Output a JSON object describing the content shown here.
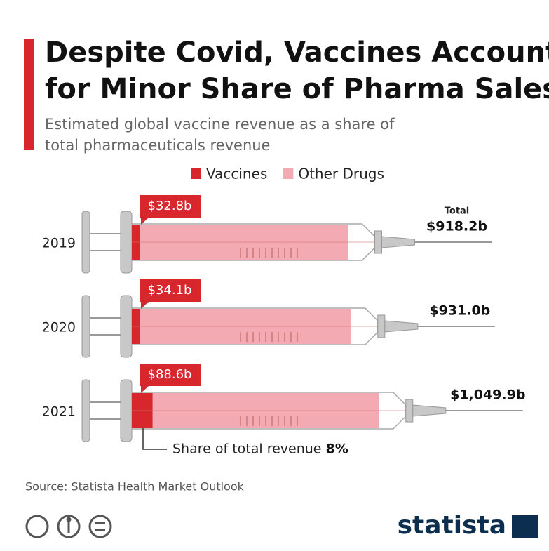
{
  "chart_data": {
    "type": "syringe",
    "title": [
      "Despite Covid, Vaccines Account",
      "for Minor Share of Pharma Sales"
    ],
    "subtitle": [
      "Estimated global vaccine revenue as a share of",
      "total pharmaceuticals revenue"
    ],
    "categories": [
      "2019",
      "2020",
      "2021"
    ],
    "series": [
      {
        "name": "Vaccines",
        "color": "#d7262c",
        "values": [
          32.8,
          34.1,
          88.6
        ],
        "value_labels": [
          "$32.8b",
          "$34.1b",
          "$88.6b"
        ]
      },
      {
        "name": "Other Drugs",
        "color": "#f4aab3",
        "values": [
          885.4,
          896.9,
          961.3
        ]
      }
    ],
    "totals": [
      918.2,
      931.0,
      1049.9
    ],
    "total_labels": [
      "$918.2b",
      "$931.0b",
      "$1,049.9b"
    ],
    "total_title": "Total",
    "annotation": "Share of total revenue",
    "share": 8,
    "share_label": "8%",
    "source": "Source: Statista Health Market Outlook",
    "brand": "statista"
  }
}
